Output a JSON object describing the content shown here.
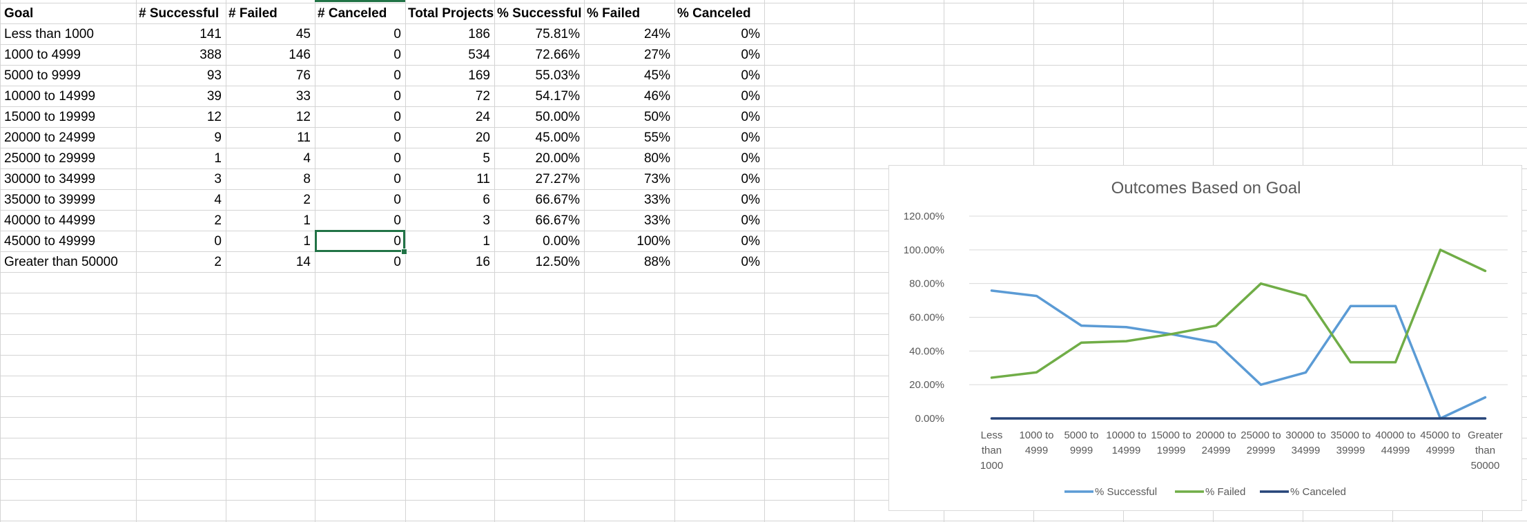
{
  "sheet": {
    "headers": [
      "Goal",
      "# Successful",
      "# Failed",
      "# Canceled",
      "Total Projects",
      "% Successful",
      "% Failed",
      "% Canceled"
    ],
    "rows": [
      [
        "Less than 1000",
        "141",
        "45",
        "0",
        "186",
        "75.81%",
        "24%",
        "0%"
      ],
      [
        "1000 to 4999",
        "388",
        "146",
        "0",
        "534",
        "72.66%",
        "27%",
        "0%"
      ],
      [
        "5000 to 9999",
        "93",
        "76",
        "0",
        "169",
        "55.03%",
        "45%",
        "0%"
      ],
      [
        "10000 to 14999",
        "39",
        "33",
        "0",
        "72",
        "54.17%",
        "46%",
        "0%"
      ],
      [
        "15000 to 19999",
        "12",
        "12",
        "0",
        "24",
        "50.00%",
        "50%",
        "0%"
      ],
      [
        "20000 to 24999",
        "9",
        "11",
        "0",
        "20",
        "45.00%",
        "55%",
        "0%"
      ],
      [
        "25000 to 29999",
        "1",
        "4",
        "0",
        "5",
        "20.00%",
        "80%",
        "0%"
      ],
      [
        "30000 to 34999",
        "3",
        "8",
        "0",
        "11",
        "27.27%",
        "73%",
        "0%"
      ],
      [
        "35000 to 39999",
        "4",
        "2",
        "0",
        "6",
        "66.67%",
        "33%",
        "0%"
      ],
      [
        "40000 to 44999",
        "2",
        "1",
        "0",
        "3",
        "66.67%",
        "33%",
        "0%"
      ],
      [
        "45000 to 49999",
        "0",
        "1",
        "0",
        "1",
        "0.00%",
        "100%",
        "0%"
      ],
      [
        "Greater than 50000",
        "2",
        "14",
        "0",
        "16",
        "12.50%",
        "88%",
        "0%"
      ]
    ],
    "selected_cell": {
      "row": 10,
      "col": 3
    }
  },
  "chart_data": {
    "type": "line",
    "title": "Outcomes Based on Goal",
    "xlabel": "",
    "ylabel": "",
    "categories": [
      "Less than 1000",
      "1000 to 4999",
      "5000 to 9999",
      "10000 to 14999",
      "15000 to 19999",
      "20000 to 24999",
      "25000 to 29999",
      "30000 to 34999",
      "35000 to 39999",
      "40000 to 44999",
      "45000 to 49999",
      "Greater than 50000"
    ],
    "category_label_lines": [
      [
        "Less",
        "than",
        "1000"
      ],
      [
        "1000 to",
        "4999"
      ],
      [
        "5000 to",
        "9999"
      ],
      [
        "10000 to",
        "14999"
      ],
      [
        "15000 to",
        "19999"
      ],
      [
        "20000 to",
        "24999"
      ],
      [
        "25000 to",
        "29999"
      ],
      [
        "30000 to",
        "34999"
      ],
      [
        "35000 to",
        "39999"
      ],
      [
        "40000 to",
        "44999"
      ],
      [
        "45000 to",
        "49999"
      ],
      [
        "Greater",
        "than",
        "50000"
      ]
    ],
    "series": [
      {
        "name": "% Successful",
        "color": "#5b9bd5",
        "values": [
          75.81,
          72.66,
          55.03,
          54.17,
          50.0,
          45.0,
          20.0,
          27.27,
          66.67,
          66.67,
          0.0,
          12.5
        ]
      },
      {
        "name": "% Failed",
        "color": "#70ad47",
        "values": [
          24.19,
          27.34,
          44.97,
          45.83,
          50.0,
          55.0,
          80.0,
          72.73,
          33.33,
          33.33,
          100.0,
          87.5
        ]
      },
      {
        "name": "% Canceled",
        "color": "#264478",
        "values": [
          0,
          0,
          0,
          0,
          0,
          0,
          0,
          0,
          0,
          0,
          0,
          0
        ]
      }
    ],
    "ylim": [
      0,
      120
    ],
    "y_ticks": [
      "0.00%",
      "20.00%",
      "40.00%",
      "60.00%",
      "80.00%",
      "100.00%",
      "120.00%"
    ],
    "grid": true,
    "legend_position": "bottom"
  }
}
